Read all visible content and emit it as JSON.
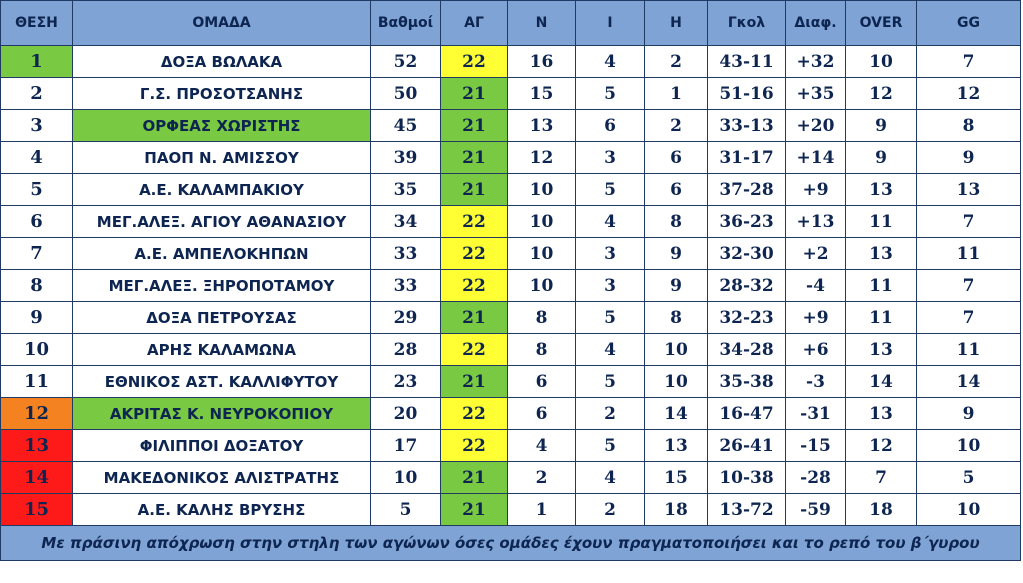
{
  "colors": {
    "header_bg": "#7ea3d4",
    "text": "#0d2550",
    "green": "#7ac943",
    "yellow": "#ffff33",
    "orange": "#f58220",
    "red": "#ff1a1a",
    "white": "#ffffff"
  },
  "headers": [
    "ΘΕΣΗ",
    "ΟΜΑΔΑ",
    "Βαθμοί",
    "ΑΓ",
    "Ν",
    "Ι",
    "Η",
    "Γκολ",
    "Διαφ.",
    "OVER",
    "GG"
  ],
  "rows": [
    {
      "pos": "1",
      "team": "ΔΟΞΑ ΒΩΛΑΚΑ",
      "pts": "52",
      "gp": "22",
      "w": "16",
      "d": "4",
      "l": "2",
      "goals": "43-11",
      "diff": "+32",
      "over": "10",
      "gg": "7",
      "pos_color": "green",
      "team_color": "white",
      "gp_color": "yellow"
    },
    {
      "pos": "2",
      "team": "Γ.Σ. ΠΡΟΣΟΤΣΑΝΗΣ",
      "pts": "50",
      "gp": "21",
      "w": "15",
      "d": "5",
      "l": "1",
      "goals": "51-16",
      "diff": "+35",
      "over": "12",
      "gg": "12",
      "pos_color": "white",
      "team_color": "white",
      "gp_color": "green"
    },
    {
      "pos": "3",
      "team": "ΟΡΦΕΑΣ ΧΩΡΙΣΤΗΣ",
      "pts": "45",
      "gp": "21",
      "w": "13",
      "d": "6",
      "l": "2",
      "goals": "33-13",
      "diff": "+20",
      "over": "9",
      "gg": "8",
      "pos_color": "white",
      "team_color": "green",
      "gp_color": "green"
    },
    {
      "pos": "4",
      "team": "ΠΑΟΠ Ν. ΑΜΙΣΣΟΥ",
      "pts": "39",
      "gp": "21",
      "w": "12",
      "d": "3",
      "l": "6",
      "goals": "31-17",
      "diff": "+14",
      "over": "9",
      "gg": "9",
      "pos_color": "white",
      "team_color": "white",
      "gp_color": "green"
    },
    {
      "pos": "5",
      "team": "Α.Ε. ΚΑΛΑΜΠΑΚΙΟΥ",
      "pts": "35",
      "gp": "21",
      "w": "10",
      "d": "5",
      "l": "6",
      "goals": "37-28",
      "diff": "+9",
      "over": "13",
      "gg": "13",
      "pos_color": "white",
      "team_color": "white",
      "gp_color": "green"
    },
    {
      "pos": "6",
      "team": "ΜΕΓ.ΑΛΕΞ. ΑΓΙΟΥ ΑΘΑΝΑΣΙΟΥ",
      "pts": "34",
      "gp": "22",
      "w": "10",
      "d": "4",
      "l": "8",
      "goals": "36-23",
      "diff": "+13",
      "over": "11",
      "gg": "7",
      "pos_color": "white",
      "team_color": "white",
      "gp_color": "yellow"
    },
    {
      "pos": "7",
      "team": "Α.Ε. ΑΜΠΕΛΟΚΗΠΩΝ",
      "pts": "33",
      "gp": "22",
      "w": "10",
      "d": "3",
      "l": "9",
      "goals": "32-30",
      "diff": "+2",
      "over": "13",
      "gg": "11",
      "pos_color": "white",
      "team_color": "white",
      "gp_color": "yellow"
    },
    {
      "pos": "8",
      "team": "ΜΕΓ.ΑΛΕΞ. ΞΗΡΟΠΟΤΑΜΟΥ",
      "pts": "33",
      "gp": "22",
      "w": "10",
      "d": "3",
      "l": "9",
      "goals": "28-32",
      "diff": "-4",
      "over": "11",
      "gg": "7",
      "pos_color": "white",
      "team_color": "white",
      "gp_color": "yellow"
    },
    {
      "pos": "9",
      "team": "ΔΟΞΑ ΠΕΤΡΟΥΣΑΣ",
      "pts": "29",
      "gp": "21",
      "w": "8",
      "d": "5",
      "l": "8",
      "goals": "32-23",
      "diff": "+9",
      "over": "11",
      "gg": "7",
      "pos_color": "white",
      "team_color": "white",
      "gp_color": "green"
    },
    {
      "pos": "10",
      "team": "ΑΡΗΣ ΚΑΛΑΜΩΝΑ",
      "pts": "28",
      "gp": "22",
      "w": "8",
      "d": "4",
      "l": "10",
      "goals": "34-28",
      "diff": "+6",
      "over": "13",
      "gg": "11",
      "pos_color": "white",
      "team_color": "white",
      "gp_color": "yellow"
    },
    {
      "pos": "11",
      "team": "ΕΘΝΙΚΟΣ ΑΣΤ. ΚΑΛΛΙΦΥΤΟΥ",
      "pts": "23",
      "gp": "21",
      "w": "6",
      "d": "5",
      "l": "10",
      "goals": "35-38",
      "diff": "-3",
      "over": "14",
      "gg": "14",
      "pos_color": "white",
      "team_color": "white",
      "gp_color": "green"
    },
    {
      "pos": "12",
      "team": "ΑΚΡΙΤΑΣ Κ. ΝΕΥΡΟΚΟΠΙΟΥ",
      "pts": "20",
      "gp": "22",
      "w": "6",
      "d": "2",
      "l": "14",
      "goals": "16-47",
      "diff": "-31",
      "over": "13",
      "gg": "9",
      "pos_color": "orange",
      "team_color": "green",
      "gp_color": "yellow"
    },
    {
      "pos": "13",
      "team": "ΦΙΛΙΠΠΟΙ ΔΟΞΑΤΟΥ",
      "pts": "17",
      "gp": "22",
      "w": "4",
      "d": "5",
      "l": "13",
      "goals": "26-41",
      "diff": "-15",
      "over": "12",
      "gg": "10",
      "pos_color": "red",
      "team_color": "white",
      "gp_color": "yellow"
    },
    {
      "pos": "14",
      "team": "ΜΑΚΕΔΟΝΙΚΟΣ ΑΛΙΣΤΡΑΤΗΣ",
      "pts": "10",
      "gp": "21",
      "w": "2",
      "d": "4",
      "l": "15",
      "goals": "10-38",
      "diff": "-28",
      "over": "7",
      "gg": "5",
      "pos_color": "red",
      "team_color": "white",
      "gp_color": "green"
    },
    {
      "pos": "15",
      "team": "Α.Ε. ΚΑΛΗΣ ΒΡΥΣΗΣ",
      "pts": "5",
      "gp": "21",
      "w": "1",
      "d": "2",
      "l": "18",
      "goals": "13-72",
      "diff": "-59",
      "over": "18",
      "gg": "10",
      "pos_color": "red",
      "team_color": "white",
      "gp_color": "green"
    }
  ],
  "footnote": "Με πράσινη  απόχρωση στην στηλη των αγώνων όσες ομάδες έχουν πραγματοποιήσει και το ρεπό του β΄γυρου"
}
